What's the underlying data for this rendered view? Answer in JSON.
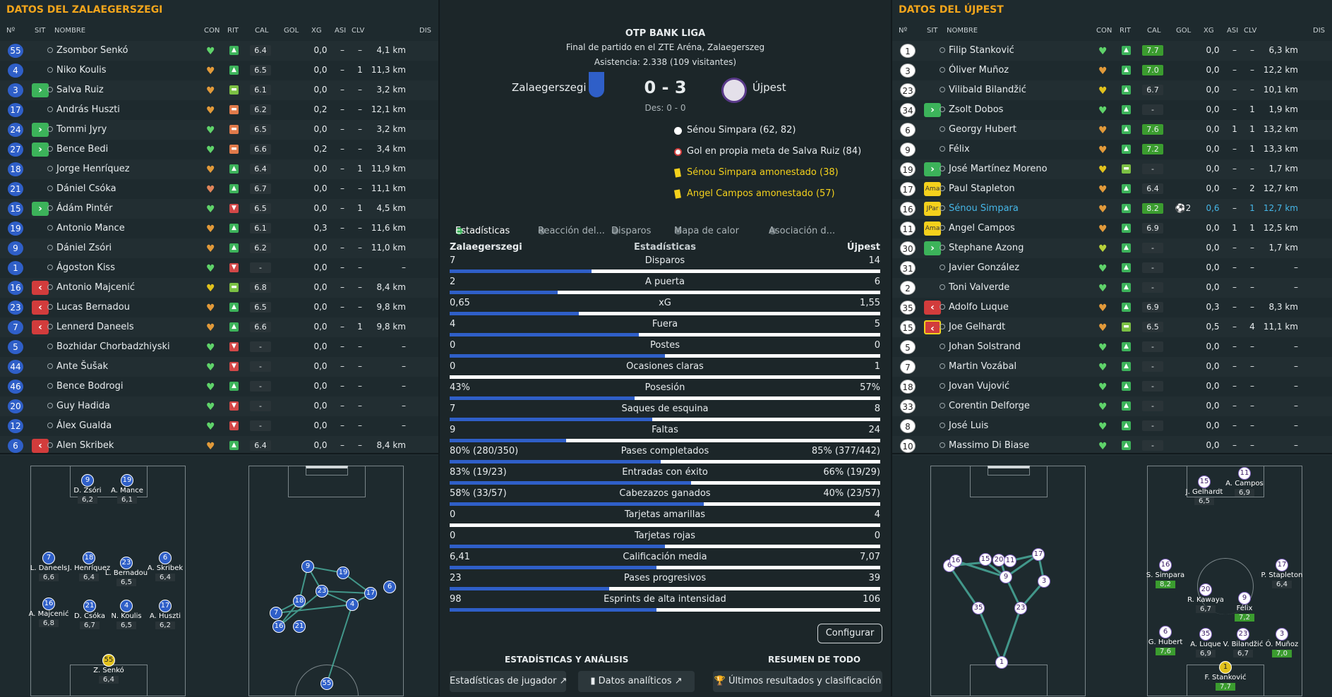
{
  "left": {
    "title": "DATOS DEL ZALAEGERSZEGI",
    "headers": [
      "Nº",
      "SIT",
      "NOMBRE",
      "CON",
      "RIT",
      "CAL",
      "GOL",
      "XG",
      "ASI",
      "CLV",
      "DIS"
    ],
    "players": [
      {
        "n": "55",
        "sit": "",
        "name": "Zsombor Senkó",
        "con": "#5fd36a",
        "rit": "up",
        "cal": "6.4",
        "gol": "",
        "xg": "0,0",
        "asi": "–",
        "clv": "–",
        "dis": "4,1 km"
      },
      {
        "n": "4",
        "sit": "",
        "name": "Niko Koulis",
        "con": "#e29a3a",
        "rit": "up",
        "cal": "6.5",
        "gol": "",
        "xg": "0,0",
        "asi": "–",
        "clv": "1",
        "dis": "11,3 km"
      },
      {
        "n": "3",
        "sit": "in",
        "name": "Salva Ruiz",
        "con": "#e29a3a",
        "rit": "mid",
        "cal": "6.1",
        "gol": "",
        "xg": "0,0",
        "asi": "–",
        "clv": "–",
        "dis": "3,2 km"
      },
      {
        "n": "17",
        "sit": "",
        "name": "András Huszti",
        "con": "#e29a3a",
        "rit": "low",
        "cal": "6.2",
        "gol": "",
        "xg": "0,2",
        "asi": "–",
        "clv": "–",
        "dis": "12,1 km"
      },
      {
        "n": "24",
        "sit": "in",
        "name": "Tommi Jyry",
        "con": "#5fd36a",
        "rit": "low",
        "cal": "6.5",
        "gol": "",
        "xg": "0,0",
        "asi": "–",
        "clv": "–",
        "dis": "3,2 km"
      },
      {
        "n": "27",
        "sit": "in",
        "name": "Bence Bedi",
        "con": "#5fd36a",
        "rit": "low",
        "cal": "6.6",
        "gol": "",
        "xg": "0,2",
        "asi": "–",
        "clv": "–",
        "dis": "3,4 km"
      },
      {
        "n": "18",
        "sit": "",
        "name": "Jorge Henríquez",
        "con": "#e29a3a",
        "rit": "up",
        "cal": "6.4",
        "gol": "",
        "xg": "0,0",
        "asi": "–",
        "clv": "1",
        "dis": "11,9 km"
      },
      {
        "n": "21",
        "sit": "",
        "name": "Dániel Csóka",
        "con": "#e0855a",
        "rit": "up",
        "cal": "6.7",
        "gol": "",
        "xg": "0,0",
        "asi": "–",
        "clv": "–",
        "dis": "11,1 km"
      },
      {
        "n": "15",
        "sit": "in",
        "name": "Ádám Pintér",
        "con": "#5fd36a",
        "rit": "down",
        "cal": "6.5",
        "gol": "",
        "xg": "0,0",
        "asi": "–",
        "clv": "1",
        "dis": "4,5 km"
      },
      {
        "n": "19",
        "sit": "",
        "name": "Antonio Mance",
        "con": "#e29a3a",
        "rit": "up",
        "cal": "6.1",
        "gol": "",
        "xg": "0,3",
        "asi": "–",
        "clv": "–",
        "dis": "11,6 km"
      },
      {
        "n": "9",
        "sit": "",
        "name": "Dániel Zsóri",
        "con": "#e29a3a",
        "rit": "up",
        "cal": "6.2",
        "gol": "",
        "xg": "0,0",
        "asi": "–",
        "clv": "–",
        "dis": "11,0 km"
      },
      {
        "n": "1",
        "sit": "",
        "name": "Ágoston Kiss",
        "con": "#5fd36a",
        "rit": "down",
        "cal": "-",
        "gol": "",
        "xg": "0,0",
        "asi": "–",
        "clv": "–",
        "dis": "–"
      },
      {
        "n": "16",
        "sit": "out",
        "name": "Antonio Majcenić",
        "con": "#e2c21d",
        "rit": "mid",
        "cal": "6.8",
        "gol": "",
        "xg": "0,0",
        "asi": "–",
        "clv": "–",
        "dis": "8,4 km"
      },
      {
        "n": "23",
        "sit": "out",
        "name": "Lucas Bernadou",
        "con": "#e29a3a",
        "rit": "up",
        "cal": "6.5",
        "gol": "",
        "xg": "0,0",
        "asi": "–",
        "clv": "–",
        "dis": "9,8 km"
      },
      {
        "n": "7",
        "sit": "out",
        "name": "Lennerd Daneels",
        "con": "#e29a3a",
        "rit": "up",
        "cal": "6.6",
        "gol": "",
        "xg": "0,0",
        "asi": "–",
        "clv": "1",
        "dis": "9,8 km"
      },
      {
        "n": "5",
        "sit": "",
        "name": "Bozhidar Chorbadzhiyski",
        "con": "#5fd36a",
        "rit": "down",
        "cal": "-",
        "gol": "",
        "xg": "0,0",
        "asi": "–",
        "clv": "–",
        "dis": "–"
      },
      {
        "n": "44",
        "sit": "",
        "name": "Ante Šušak",
        "con": "#5fd36a",
        "rit": "down",
        "cal": "-",
        "gol": "",
        "xg": "0,0",
        "asi": "–",
        "clv": "–",
        "dis": "–"
      },
      {
        "n": "46",
        "sit": "",
        "name": "Bence Bodrogi",
        "con": "#5fd36a",
        "rit": "up",
        "cal": "-",
        "gol": "",
        "xg": "0,0",
        "asi": "–",
        "clv": "–",
        "dis": "–"
      },
      {
        "n": "20",
        "sit": "",
        "name": "Guy Hadida",
        "con": "#5fd36a",
        "rit": "down",
        "cal": "-",
        "gol": "",
        "xg": "0,0",
        "asi": "–",
        "clv": "–",
        "dis": "–"
      },
      {
        "n": "12",
        "sit": "",
        "name": "Álex Gualda",
        "con": "#5fd36a",
        "rit": "down",
        "cal": "-",
        "gol": "",
        "xg": "0,0",
        "asi": "–",
        "clv": "–",
        "dis": "–"
      },
      {
        "n": "6",
        "sit": "out",
        "name": "Alen Skribek",
        "con": "#e29a3a",
        "rit": "up",
        "cal": "6.4",
        "gol": "",
        "xg": "0,0",
        "asi": "–",
        "clv": "–",
        "dis": "8,4 km"
      }
    ],
    "formation": [
      {
        "n": "9",
        "label": "D. Zsóri",
        "rat": "6,2"
      },
      {
        "n": "19",
        "label": "A. Mance",
        "rat": "6,1"
      },
      {
        "n": "7",
        "label": "L. Daneels",
        "rat": "6,6"
      },
      {
        "n": "18",
        "label": "J. Henríquez",
        "rat": "6,4"
      },
      {
        "n": "23",
        "label": "L. Bernadou",
        "rat": "6,5"
      },
      {
        "n": "6",
        "label": "A. Skribek",
        "rat": "6,4"
      },
      {
        "n": "16",
        "label": "A. Majcenić",
        "rat": "6,8"
      },
      {
        "n": "21",
        "label": "D. Csóka",
        "rat": "6,7"
      },
      {
        "n": "4",
        "label": "N. Koulis",
        "rat": "6,5"
      },
      {
        "n": "17",
        "label": "A. Huszti",
        "rat": "6,2"
      },
      {
        "n": "55",
        "label": "Z. Senkó",
        "rat": "6,4"
      }
    ]
  },
  "center": {
    "league": "OTP BANK LIGA",
    "sub1": "Final de partido en el ZTE Aréna, Zalaegerszeg",
    "sub2": "Asistencia: 2.338 (109 visitantes)",
    "home": "Zalaegerszegi",
    "away": "Újpest",
    "score": "0 - 3",
    "ht": "Des: 0 - 0",
    "events": [
      {
        "type": "goal",
        "text": "Sénou Simpara (62, 82)"
      },
      {
        "type": "owngoal",
        "text": "Gol en propia meta de Salva Ruiz (84)"
      },
      {
        "type": "card",
        "text": "Sénou Simpara amonestado (38)"
      },
      {
        "type": "card",
        "text": "Angel Campos amonestado (57)"
      }
    ],
    "tabs": [
      "Estadísticas",
      "Reacción del...",
      "Disparos",
      "Mapa de calor",
      "Asociación d..."
    ],
    "stats_head": {
      "home": "Zalaegerszegi",
      "title": "Estadísticas",
      "away": "Újpest"
    },
    "stats": [
      {
        "l": "7",
        "name": "Disparos",
        "r": "14",
        "pct": 0.33
      },
      {
        "l": "2",
        "name": "A puerta",
        "r": "6",
        "pct": 0.25
      },
      {
        "l": "0,65",
        "name": "xG",
        "r": "1,55",
        "pct": 0.3
      },
      {
        "l": "4",
        "name": "Fuera",
        "r": "5",
        "pct": 0.44
      },
      {
        "l": "0",
        "name": "Postes",
        "r": "0",
        "pct": 0.5
      },
      {
        "l": "0",
        "name": "Ocasiones claras",
        "r": "1",
        "pct": 0.0
      },
      {
        "l": "43%",
        "name": "Posesión",
        "r": "57%",
        "pct": 0.43
      },
      {
        "l": "7",
        "name": "Saques de esquina",
        "r": "8",
        "pct": 0.47
      },
      {
        "l": "9",
        "name": "Faltas",
        "r": "24",
        "pct": 0.27
      },
      {
        "l": "80% (280/350)",
        "name": "Pases completados",
        "r": "85% (377/442)",
        "pct": 0.49
      },
      {
        "l": "83% (19/23)",
        "name": "Entradas con éxito",
        "r": "66% (19/29)",
        "pct": 0.56
      },
      {
        "l": "58% (33/57)",
        "name": "Cabezazos ganados",
        "r": "40% (23/57)",
        "pct": 0.59
      },
      {
        "l": "0",
        "name": "Tarjetas amarillas",
        "r": "4",
        "pct": 0.0
      },
      {
        "l": "0",
        "name": "Tarjetas rojas",
        "r": "0",
        "pct": 0.5
      },
      {
        "l": "6,41",
        "name": "Calificación media",
        "r": "7,07",
        "pct": 0.48
      },
      {
        "l": "23",
        "name": "Pases progresivos",
        "r": "39",
        "pct": 0.37
      },
      {
        "l": "98",
        "name": "Esprints de alta intensidad",
        "r": "106",
        "pct": 0.48
      }
    ],
    "configure": "Configurar",
    "section1": "ESTADÍSTICAS Y ANÁLISIS",
    "section2": "RESUMEN DE TODO",
    "btn1": "Estadísticas de jugador",
    "btn2": "Datos analíticos",
    "btn3": "Últimos resultados y clasificación"
  },
  "right": {
    "title": "DATOS DEL ÚJPEST",
    "headers": [
      "Nº",
      "SIT",
      "NOMBRE",
      "CON",
      "RIT",
      "CAL",
      "GOL",
      "XG",
      "ASI",
      "CLV",
      "DIS"
    ],
    "players": [
      {
        "n": "1",
        "sit": "",
        "name": "Filip Stanković",
        "con": "#5fd36a",
        "rit": "up",
        "cal": "7.7",
        "g": true,
        "gol": "",
        "xg": "0,0",
        "asi": "–",
        "clv": "–",
        "dis": "6,3 km"
      },
      {
        "n": "3",
        "sit": "",
        "name": "Óliver Muñoz",
        "con": "#e29a3a",
        "rit": "up",
        "cal": "7.0",
        "g": true,
        "gol": "",
        "xg": "0,0",
        "asi": "–",
        "clv": "–",
        "dis": "12,2 km"
      },
      {
        "n": "23",
        "sit": "",
        "name": "Vilibald Bilandžić",
        "con": "#e2c21d",
        "rit": "up",
        "cal": "6.7",
        "gol": "",
        "xg": "0,0",
        "asi": "–",
        "clv": "–",
        "dis": "10,1 km"
      },
      {
        "n": "34",
        "sit": "in",
        "name": "Zsolt Dobos",
        "con": "#5fd36a",
        "rit": "up",
        "cal": "-",
        "gol": "",
        "xg": "0,0",
        "asi": "–",
        "clv": "1",
        "dis": "1,9 km"
      },
      {
        "n": "6",
        "sit": "",
        "name": "Georgy Hubert",
        "con": "#e29a3a",
        "rit": "up",
        "cal": "7.6",
        "g": true,
        "gol": "",
        "xg": "0,0",
        "asi": "1",
        "clv": "1",
        "dis": "13,2 km"
      },
      {
        "n": "9",
        "sit": "",
        "name": "Félix",
        "con": "#e29a3a",
        "rit": "up",
        "cal": "7.2",
        "g": true,
        "gol": "",
        "xg": "0,0",
        "asi": "–",
        "clv": "1",
        "dis": "13,3 km"
      },
      {
        "n": "19",
        "sit": "in",
        "name": "José Martínez Moreno",
        "con": "#e2c21d",
        "rit": "mid",
        "cal": "-",
        "gol": "",
        "xg": "0,0",
        "asi": "–",
        "clv": "–",
        "dis": "1,7 km"
      },
      {
        "n": "17",
        "sit": "ama",
        "name": "Paul Stapleton",
        "con": "#e29a3a",
        "rit": "up",
        "cal": "6.4",
        "gol": "",
        "xg": "0,0",
        "asi": "–",
        "clv": "2",
        "dis": "12,7 km"
      },
      {
        "n": "16",
        "sit": "jpar",
        "name": "Sénou Simpara",
        "con": "#e29a3a",
        "rit": "up",
        "cal": "8.2",
        "g": true,
        "gol": "2",
        "xg": "0,6",
        "asi": "–",
        "clv": "1",
        "dis": "12,7 km",
        "hl": true
      },
      {
        "n": "11",
        "sit": "ama",
        "name": "Angel Campos",
        "con": "#e29a3a",
        "rit": "up",
        "cal": "6.9",
        "gol": "",
        "xg": "0,0",
        "asi": "1",
        "clv": "1",
        "dis": "12,5 km"
      },
      {
        "n": "30",
        "sit": "in",
        "name": "Stephane Azong",
        "con": "#b8d33a",
        "rit": "up",
        "cal": "-",
        "gol": "",
        "xg": "0,0",
        "asi": "–",
        "clv": "–",
        "dis": "1,7 km"
      },
      {
        "n": "31",
        "sit": "",
        "name": "Javier González",
        "con": "#5fd36a",
        "rit": "up",
        "cal": "-",
        "gol": "",
        "xg": "0,0",
        "asi": "–",
        "clv": "–",
        "dis": "–"
      },
      {
        "n": "2",
        "sit": "",
        "name": "Toni Valverde",
        "con": "#5fd36a",
        "rit": "up",
        "cal": "-",
        "gol": "",
        "xg": "0,0",
        "asi": "–",
        "clv": "–",
        "dis": "–"
      },
      {
        "n": "35",
        "sit": "out",
        "name": "Adolfo Luque",
        "con": "#e29a3a",
        "rit": "up",
        "cal": "6.9",
        "gol": "",
        "xg": "0,3",
        "asi": "–",
        "clv": "–",
        "dis": "8,3 km"
      },
      {
        "n": "15",
        "sit": "outy",
        "name": "Joe Gelhardt",
        "con": "#e29a3a",
        "rit": "mid",
        "cal": "6.5",
        "gol": "",
        "xg": "0,5",
        "asi": "–",
        "clv": "4",
        "dis": "11,1 km"
      },
      {
        "n": "5",
        "sit": "",
        "name": "Johan Solstrand",
        "con": "#5fd36a",
        "rit": "up",
        "cal": "-",
        "gol": "",
        "xg": "0,0",
        "asi": "–",
        "clv": "–",
        "dis": "–"
      },
      {
        "n": "7",
        "sit": "",
        "name": "Martin Vozábal",
        "con": "#5fd36a",
        "rit": "up",
        "cal": "-",
        "gol": "",
        "xg": "0,0",
        "asi": "–",
        "clv": "–",
        "dis": "–"
      },
      {
        "n": "18",
        "sit": "",
        "name": "Jovan Vujović",
        "con": "#5fd36a",
        "rit": "up",
        "cal": "-",
        "gol": "",
        "xg": "0,0",
        "asi": "–",
        "clv": "–",
        "dis": "–"
      },
      {
        "n": "33",
        "sit": "",
        "name": "Corentin Delforge",
        "con": "#5fd36a",
        "rit": "up",
        "cal": "-",
        "gol": "",
        "xg": "0,0",
        "asi": "–",
        "clv": "–",
        "dis": "–"
      },
      {
        "n": "8",
        "sit": "",
        "name": "José Luis",
        "con": "#5fd36a",
        "rit": "up",
        "cal": "-",
        "gol": "",
        "xg": "0,0",
        "asi": "–",
        "clv": "–",
        "dis": "–"
      },
      {
        "n": "10",
        "sit": "",
        "name": "Massimo Di Biase",
        "con": "#5fd36a",
        "rit": "up",
        "cal": "-",
        "gol": "",
        "xg": "0,0",
        "asi": "–",
        "clv": "–",
        "dis": "–"
      }
    ],
    "formation": [
      {
        "n": "15",
        "label": "J. Gelhardt",
        "rat": "6,5",
        "g": false
      },
      {
        "n": "11",
        "label": "A. Campos",
        "rat": "6,9",
        "g": false
      },
      {
        "n": "16",
        "label": "S. Simpara",
        "rat": "8,2",
        "g": true
      },
      {
        "n": "20",
        "label": "R. Kawaya",
        "rat": "6,7",
        "g": false
      },
      {
        "n": "9",
        "label": "Félix",
        "rat": "7,2",
        "g": true
      },
      {
        "n": "17",
        "label": "P. Stapleton",
        "rat": "6,4",
        "g": false
      },
      {
        "n": "6",
        "label": "G. Hubert",
        "rat": "7,6",
        "g": true
      },
      {
        "n": "35",
        "label": "A. Luque",
        "rat": "6,9",
        "g": false
      },
      {
        "n": "23",
        "label": "V. Bilandžić",
        "rat": "6,7",
        "g": false
      },
      {
        "n": "3",
        "label": "Ó. Muñoz",
        "rat": "7,0",
        "g": true
      },
      {
        "n": "1",
        "label": "F. Stanković",
        "rat": "7,7",
        "g": true
      }
    ]
  }
}
